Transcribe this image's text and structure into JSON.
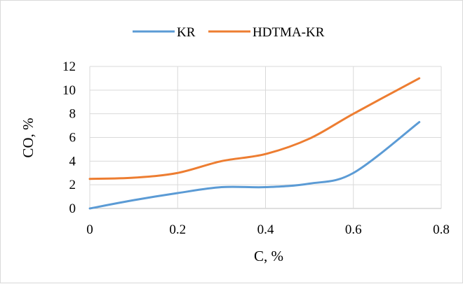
{
  "chart_data": {
    "type": "line",
    "title": "",
    "xlabel": "C, %",
    "ylabel": "CO, %",
    "xlim": [
      0,
      0.8
    ],
    "ylim": [
      0,
      12
    ],
    "x_ticks": [
      "0",
      "0.2",
      "0.4",
      "0.6",
      "0.8"
    ],
    "y_ticks": [
      "0",
      "2",
      "4",
      "6",
      "8",
      "10",
      "12"
    ],
    "grid": true,
    "legend_position": "top",
    "series": [
      {
        "name": "KR",
        "color": "#5b9bd5",
        "x": [
          0,
          0.1,
          0.2,
          0.3,
          0.4,
          0.5,
          0.6,
          0.75
        ],
        "y": [
          0,
          0.7,
          1.3,
          1.8,
          1.8,
          2.1,
          3.0,
          7.3
        ]
      },
      {
        "name": "HDTMA-KR",
        "color": "#ed7d31",
        "x": [
          0,
          0.1,
          0.2,
          0.3,
          0.4,
          0.5,
          0.6,
          0.75
        ],
        "y": [
          2.5,
          2.6,
          3.0,
          4.0,
          4.6,
          5.9,
          8.0,
          11.0
        ]
      }
    ]
  }
}
